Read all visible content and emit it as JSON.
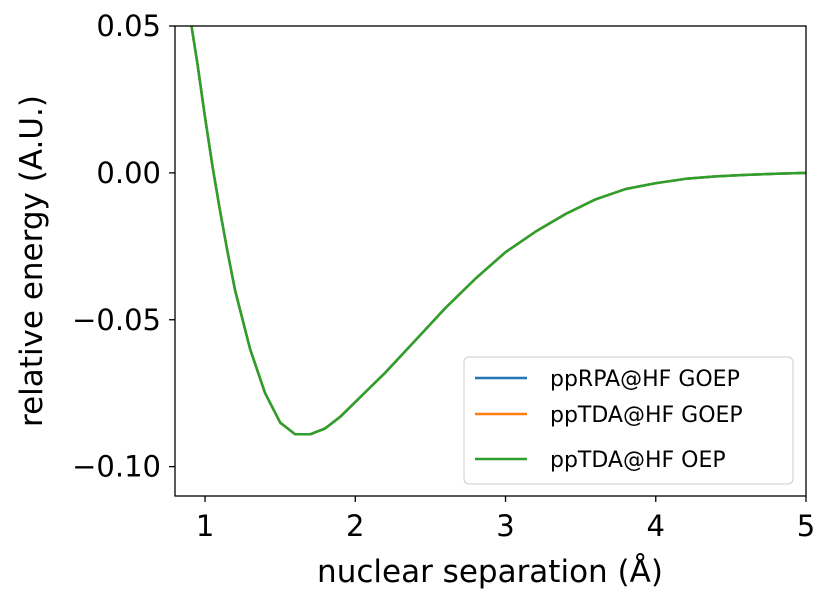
{
  "chart_data": {
    "type": "line",
    "title": "",
    "xlabel": "nuclear separation (Å)",
    "ylabel": "relative energy (A.U.)",
    "xlim": [
      0.8,
      5.0
    ],
    "ylim": [
      -0.11,
      0.05
    ],
    "x_ticks": [
      1,
      2,
      3,
      4,
      5
    ],
    "x_tick_labels": [
      "1",
      "2",
      "3",
      "4",
      "5"
    ],
    "y_ticks": [
      0.05,
      0.0,
      -0.05,
      -0.1
    ],
    "y_tick_labels": [
      "0.05",
      "0.00",
      "−0.05",
      "−0.10"
    ],
    "grid": false,
    "legend_position": "lower-right",
    "x": [
      0.91,
      0.95,
      1.0,
      1.05,
      1.1,
      1.15,
      1.2,
      1.3,
      1.4,
      1.5,
      1.6,
      1.7,
      1.8,
      1.9,
      2.0,
      2.2,
      2.4,
      2.6,
      2.8,
      3.0,
      3.2,
      3.4,
      3.6,
      3.8,
      4.0,
      4.2,
      4.4,
      4.6,
      4.8,
      5.0
    ],
    "series": [
      {
        "name": "ppRPA@HF GOEP",
        "color": "#1f77b4",
        "values": [
          0.05,
          0.037,
          0.019,
          0.002,
          -0.013,
          -0.027,
          -0.04,
          -0.06,
          -0.075,
          -0.085,
          -0.089,
          -0.089,
          -0.087,
          -0.083,
          -0.078,
          -0.068,
          -0.057,
          -0.046,
          -0.036,
          -0.027,
          -0.02,
          -0.014,
          -0.009,
          -0.0055,
          -0.0035,
          -0.002,
          -0.0012,
          -0.0007,
          -0.0003,
          0.0
        ]
      },
      {
        "name": "ppTDA@HF GOEP",
        "color": "#ff7f0e",
        "values": [
          0.05,
          0.037,
          0.019,
          0.002,
          -0.013,
          -0.027,
          -0.04,
          -0.06,
          -0.075,
          -0.085,
          -0.089,
          -0.089,
          -0.087,
          -0.083,
          -0.078,
          -0.068,
          -0.057,
          -0.046,
          -0.036,
          -0.027,
          -0.02,
          -0.014,
          -0.009,
          -0.0055,
          -0.0035,
          -0.002,
          -0.0012,
          -0.0007,
          -0.0003,
          0.0
        ]
      },
      {
        "name": "ppTDA@HF OEP",
        "color": "#2ca02c",
        "values": [
          0.05,
          0.037,
          0.019,
          0.002,
          -0.013,
          -0.027,
          -0.04,
          -0.06,
          -0.075,
          -0.085,
          -0.089,
          -0.089,
          -0.087,
          -0.083,
          -0.078,
          -0.068,
          -0.057,
          -0.046,
          -0.036,
          -0.027,
          -0.02,
          -0.014,
          -0.009,
          -0.0055,
          -0.0035,
          -0.002,
          -0.0012,
          -0.0007,
          -0.0003,
          0.0
        ]
      }
    ]
  }
}
